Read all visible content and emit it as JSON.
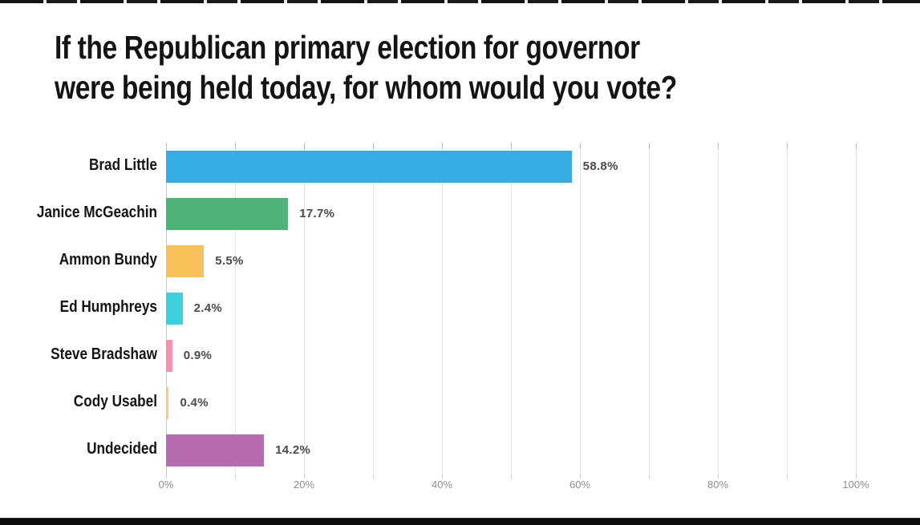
{
  "chart_data": {
    "type": "bar",
    "orientation": "horizontal",
    "title": "If the Republican primary election for governor were being held today, for whom would you vote?",
    "title_lines": [
      "If the Republican primary election for governor",
      "were being held today, for whom would you vote?"
    ],
    "categories": [
      "Brad Little",
      "Janice McGeachin",
      "Ammon Bundy",
      "Ed Humphreys",
      "Steve Bradshaw",
      "Cody Usabel",
      "Undecided"
    ],
    "values": [
      58.8,
      17.7,
      5.5,
      2.4,
      0.9,
      0.4,
      14.2
    ],
    "value_labels": [
      "58.8%",
      "17.7%",
      "5.5%",
      "2.4%",
      "0.9%",
      "0.4%",
      "14.2%"
    ],
    "bar_colors": [
      "#35ACE2",
      "#4DB377",
      "#F9C159",
      "#3FD0E0",
      "#F990AD",
      "#F5CC85",
      "#B76CB2"
    ],
    "xlabel": "",
    "ylabel": "",
    "xlim": [
      0,
      100
    ],
    "x_tick_labels": [
      "0%",
      "20%",
      "40%",
      "60%",
      "80%",
      "100%"
    ],
    "x_tick_values": [
      0,
      20,
      40,
      60,
      80,
      100
    ],
    "minor_grid_step": 10,
    "grid": "vertical-only",
    "legend": "none",
    "colors": {
      "title_text": "#141414",
      "category_text": "#141414",
      "value_text": "#4a4a4a",
      "tick_text": "#8e8e8e",
      "gridline": "#e4e4e4",
      "axis_line": "#c8c8c8",
      "background": "#ffffff"
    }
  }
}
